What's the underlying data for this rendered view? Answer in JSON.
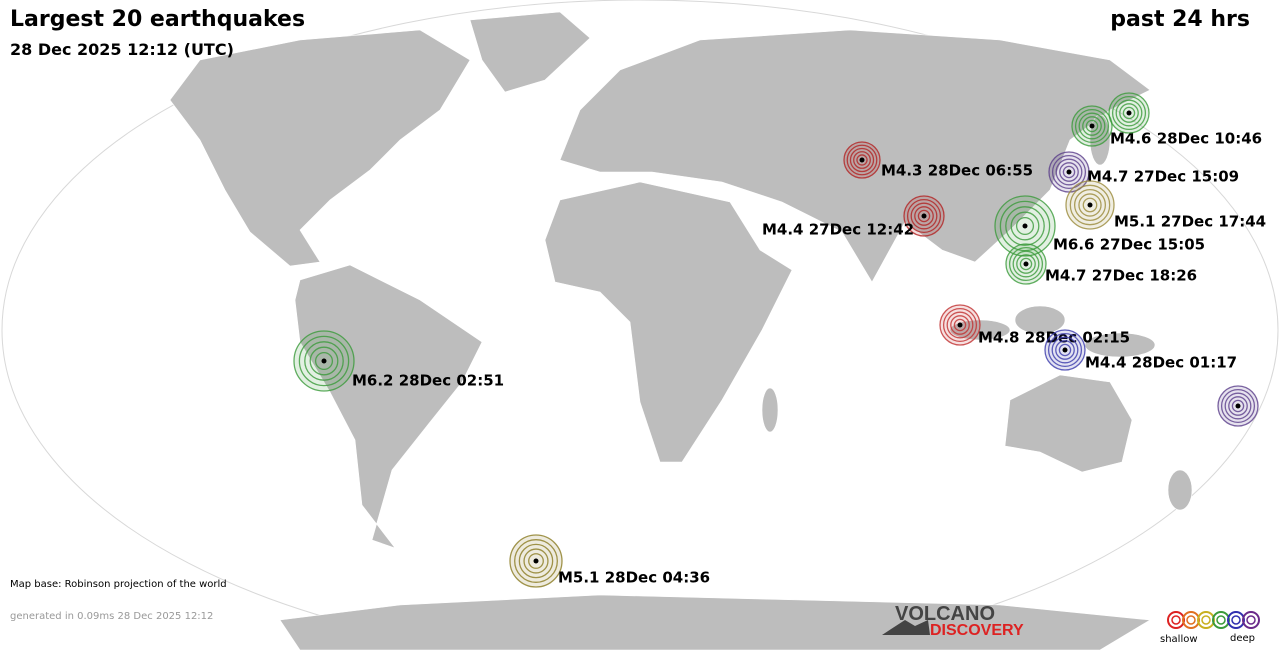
{
  "header": {
    "title": "Largest 20 earthquakes",
    "subtitle": "28 Dec 2025 12:12 (UTC)",
    "period": "past 24 hrs"
  },
  "quakes": [
    {
      "label": "M4.6 28Dec 10:46",
      "color": "#3a9a3a"
    },
    {
      "color": "#3a9a3a"
    },
    {
      "label": "M4.3 28Dec 06:55",
      "color": "#b22222"
    },
    {
      "label": "M4.7 27Dec 15:09",
      "color": "#5a3d8a"
    },
    {
      "label": "M5.1 27Dec 17:44",
      "color": "#9a8a3a"
    },
    {
      "label": "M4.4 27Dec 12:42",
      "color": "#b22222"
    },
    {
      "label": "M6.6 27Dec 15:05",
      "color": "#3a9a3a"
    },
    {
      "label": "M4.7 27Dec 18:26",
      "color": "#3a9a3a"
    },
    {
      "label": "M4.8 28Dec 02:15",
      "color": "#c03030"
    },
    {
      "label": "M4.4 28Dec 01:17",
      "color": "#3a3aaa"
    },
    {
      "label": "M6.2 28Dec 02:51",
      "color": "#3a9a3a"
    },
    {
      "label": "M5.1 28Dec 04:36",
      "color": "#8a7a20"
    },
    {
      "color": "#5a3d8a"
    }
  ],
  "footer": {
    "map_base": "Map base: Robinson projection of the world",
    "generated": "generated in 0.09ms 28 Dec 2025 12:12"
  },
  "logo": {
    "line1": "VOLCANO",
    "line2": "DISCOVERY"
  },
  "legend": {
    "shallow": "shallow",
    "deep": "deep",
    "colors": [
      "#d22",
      "#e07020",
      "#c8b020",
      "#3a9a3a",
      "#3030b0",
      "#6a2a8a"
    ]
  }
}
